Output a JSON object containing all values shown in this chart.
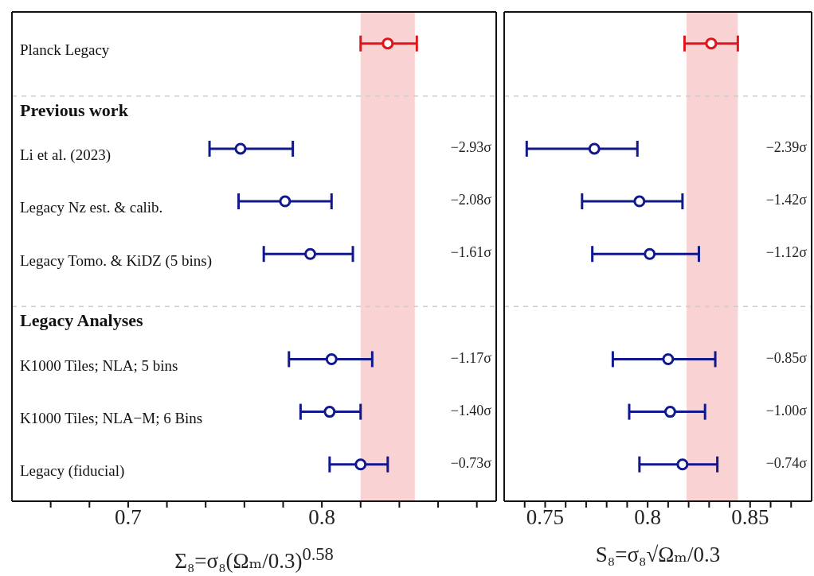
{
  "chart_data": [
    {
      "type": "scatter",
      "orientation": "horizontal",
      "xlabel": "Σ₈=σ₈(Ωₘ/0.3)$^{0.58}$",
      "categories": [
        "Planck Legacy",
        "Previous work",
        "Li et al. (2023)",
        "Legacy Nz est. & calib.",
        "Legacy Tomo. & KiDZ (5 bins)",
        "Legacy Analyses",
        "K1000 Tiles; NLA; 5 bins",
        "K1000 Tiles; NLA−M; 6 Bins",
        "Legacy (fiducial)"
      ],
      "series": [
        {
          "color": "#e3141c",
          "values": [
            0.834,
            null,
            null,
            null,
            null,
            null,
            null,
            null,
            null
          ],
          "errors": [
            [
              0.82,
              0.849
            ],
            null,
            null,
            null,
            null,
            null,
            null,
            null,
            null
          ]
        },
        {
          "color": "#10188c",
          "values": [
            null,
            null,
            0.758,
            0.781,
            0.794,
            null,
            0.805,
            0.804,
            0.82
          ],
          "errors": [
            null,
            null,
            [
              0.742,
              0.785
            ],
            [
              0.757,
              0.805
            ],
            [
              0.77,
              0.816
            ],
            null,
            [
              0.783,
              0.826
            ],
            [
              0.789,
              0.82
            ],
            [
              0.804,
              0.834
            ]
          ]
        }
      ],
      "annotations": [
        "−2.93σ",
        "−2.08σ",
        "−1.61σ",
        "−1.17σ",
        "−1.40σ",
        "−0.73σ"
      ],
      "xlim": [
        0.64,
        0.89
      ],
      "xticks": [
        {
          "value": 0.66,
          "label": null
        },
        {
          "value": 0.68,
          "label": null
        },
        0.7,
        {
          "value": 0.72,
          "label": null
        },
        {
          "value": 0.74,
          "label": null
        },
        {
          "value": 0.76,
          "label": null
        },
        {
          "value": 0.78,
          "label": null
        },
        0.8,
        {
          "value": 0.82,
          "label": null
        },
        {
          "value": 0.84,
          "label": null
        },
        {
          "value": 0.86,
          "label": null
        },
        {
          "value": 0.88,
          "label": null
        }
      ],
      "bands": [
        {
          "axis": "x",
          "from": 0.82,
          "to": 0.848,
          "color": "#f9d3d3"
        }
      ],
      "ref_lines": [
        {
          "axis": "y",
          "value": "Previous work",
          "color": "#cccccc",
          "line_style": "dashed"
        },
        {
          "axis": "y",
          "value": "Legacy Analyses",
          "color": "#cccccc",
          "line_style": "dashed"
        }
      ],
      "marker": "circle",
      "grid": false,
      "legend": false
    },
    {
      "type": "scatter",
      "orientation": "horizontal",
      "xlabel": "S₈=σ₈√Ωₘ/0.3",
      "categories": [
        "Planck Legacy",
        "Previous work",
        "Li et al. (2023)",
        "Legacy Nz est. & calib.",
        "Legacy Tomo. & KiDZ (5 bins)",
        "Legacy Analyses",
        "K1000 Tiles; NLA; 5 bins",
        "K1000 Tiles; NLA−M; 6 Bins",
        "Legacy (fiducial)"
      ],
      "series": [
        {
          "color": "#e3141c",
          "values": [
            0.831,
            null,
            null,
            null,
            null,
            null,
            null,
            null,
            null
          ],
          "errors": [
            [
              0.818,
              0.844
            ],
            null,
            null,
            null,
            null,
            null,
            null,
            null,
            null
          ]
        },
        {
          "color": "#10188c",
          "values": [
            null,
            null,
            0.774,
            0.796,
            0.801,
            null,
            0.81,
            0.811,
            0.817
          ],
          "errors": [
            null,
            null,
            [
              0.741,
              0.795
            ],
            [
              0.768,
              0.817
            ],
            [
              0.773,
              0.825
            ],
            null,
            [
              0.783,
              0.833
            ],
            [
              0.791,
              0.828
            ],
            [
              0.796,
              0.834
            ]
          ]
        }
      ],
      "annotations": [
        "−2.39σ",
        "−1.42σ",
        "−1.12σ",
        "−0.85σ",
        "−1.00σ",
        "−0.74σ"
      ],
      "xlim": [
        0.73,
        0.88
      ],
      "xticks": [
        {
          "value": 0.74,
          "label": null
        },
        0.75,
        {
          "value": 0.76,
          "label": null
        },
        {
          "value": 0.77,
          "label": null
        },
        {
          "value": 0.78,
          "label": null
        },
        {
          "value": 0.79,
          "label": null
        },
        0.8,
        {
          "value": 0.81,
          "label": null
        },
        {
          "value": 0.82,
          "label": null
        },
        {
          "value": 0.83,
          "label": null
        },
        {
          "value": 0.84,
          "label": null
        },
        0.85,
        {
          "value": 0.86,
          "label": null
        },
        {
          "value": 0.87,
          "label": null
        }
      ],
      "bands": [
        {
          "axis": "x",
          "from": 0.819,
          "to": 0.844,
          "color": "#f9d3d3"
        }
      ],
      "ref_lines": [
        {
          "axis": "y",
          "value": "Previous work",
          "color": "#cccccc",
          "line_style": "dashed"
        },
        {
          "axis": "y",
          "value": "Legacy Analyses",
          "color": "#cccccc",
          "line_style": "dashed"
        }
      ],
      "marker": "circle",
      "grid": false,
      "legend": false,
      "tick_labels": "x"
    }
  ]
}
